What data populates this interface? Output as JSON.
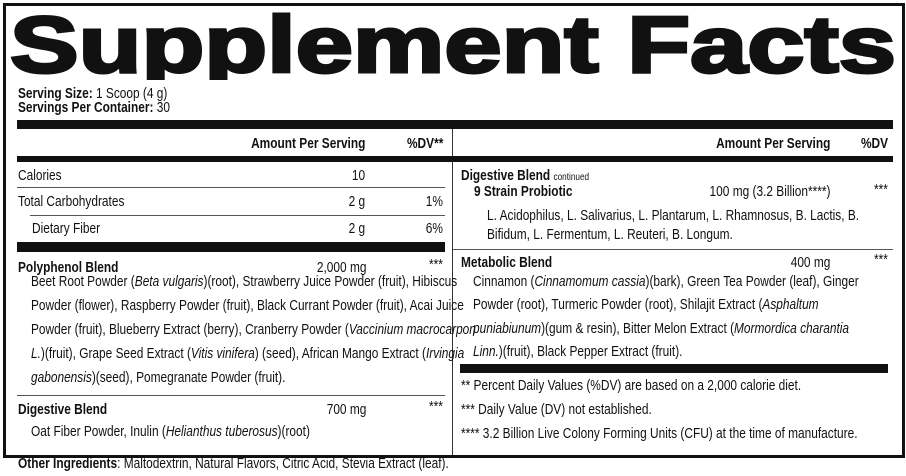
{
  "title": "Supplement Facts",
  "serving": {
    "size_label": "Serving Size:",
    "size_value": " 1 Scoop (4 g)",
    "per_container_label": "Servings Per Container:",
    "per_container_value": " 30"
  },
  "left": {
    "header_amount": "Amount Per Serving",
    "header_dv": "%DV**",
    "rows": [
      {
        "name": "Calories",
        "amount": "10",
        "dv": ""
      },
      {
        "name": "Total Carbohydrates",
        "amount": "2 g",
        "dv": "1%"
      },
      {
        "name": "Dietary Fiber",
        "amount": "2 g",
        "dv": "6%"
      }
    ],
    "polyphenol": {
      "name": "Polyphenol Blend",
      "amount": "2,000 mg",
      "dv": "***",
      "lines": [
        [
          "Beet Root Powder (",
          "Beta vulgaris",
          ")(root), Strawberry Juice Powder (fruit), Hibiscus"
        ],
        [
          "Powder (flower), Raspberry Powder (fruit), Black Currant Powder (fruit), Acai Juice",
          "",
          ""
        ],
        [
          "Powder (fruit), Blueberry Extract (berry), Cranberry Powder (",
          "Vaccinium macrocarpon",
          ""
        ],
        [
          "",
          "L.",
          ")(fruit), Grape Seed Extract ("
        ],
        [
          "",
          "gabonensis",
          ")(seed), Pomegranate Powder (fruit)."
        ]
      ],
      "line4_italic2": "Vitis vinifera",
      "line4_mid": ")  (seed), African Mango Extract (",
      "line4_italic3": "Irvingia"
    },
    "digestive": {
      "name": "Digestive Blend",
      "amount": "700 mg",
      "dv": "***",
      "text_a": "Oat Fiber Powder, Inulin  (",
      "text_italic": "Helianthus tuberosus",
      "text_b": ")(root)"
    }
  },
  "right": {
    "header_amount": "Amount Per Serving",
    "header_dv": "%DV",
    "digestive_cont": {
      "name": "Digestive Blend",
      "note": "continued"
    },
    "probiotic": {
      "name": "9 Strain Probiotic",
      "amount": "100 mg (3.2 Billion****)",
      "dv": "***",
      "lines": [
        "L. Acidophilus, L. Salivarius, L. Plantarum, L. Rhamnosus, B. Lactis, B.",
        "Bifidum, L. Fermentum, L. Reuteri, B. Longum."
      ]
    },
    "metabolic": {
      "name": "Metabolic Blend",
      "amount": "400 mg",
      "dv": "***",
      "l1a": "Cinnamon (",
      "l1i": "Cinnamomum cassia",
      "l1b": ")(bark), Green Tea Powder (leaf), Ginger",
      "l2a": "Powder (root), Turmeric Powder (root), Shilajit Extract (",
      "l2i": "Asphaltum",
      "l3i": "puniabiunum",
      "l3b": ")(gum & resin), Bitter Melon Extract (",
      "l3i2": "Mormordica charantia",
      "l4i": "Linn.",
      "l4b": ")(fruit), Black Pepper Extract (fruit)."
    },
    "footnotes": [
      "** Percent Daily Values (%DV) are based on a 2,000 calorie diet.",
      "*** Daily Value (DV) not established.",
      "**** 3.2 Billion Live Colony Forming Units (CFU) at the time of manufacture."
    ]
  },
  "other": {
    "label": "Other Ingredients",
    "value": ": Maltodextrin, Natural Flavors, Citric Acid, Stevia Extract (leaf)."
  }
}
